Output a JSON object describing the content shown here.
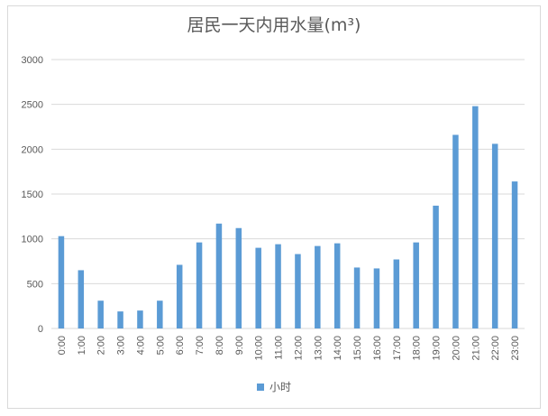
{
  "chart_data": {
    "type": "bar",
    "title": "居民一天内用水量(m³)",
    "categories": [
      "0:00",
      "1:00",
      "2:00",
      "3:00",
      "4:00",
      "5:00",
      "6:00",
      "7:00",
      "8:00",
      "9:00",
      "10:00",
      "11:00",
      "12:00",
      "13:00",
      "14:00",
      "15:00",
      "16:00",
      "17:00",
      "18:00",
      "19:00",
      "20:00",
      "21:00",
      "22:00",
      "23:00"
    ],
    "series": [
      {
        "name": "小时",
        "values": [
          1030,
          650,
          310,
          190,
          200,
          310,
          710,
          960,
          1170,
          1120,
          900,
          940,
          830,
          920,
          950,
          680,
          670,
          770,
          960,
          1370,
          2160,
          2480,
          2060,
          1640
        ]
      }
    ],
    "xlabel": "",
    "ylabel": "",
    "ylim": [
      0,
      3000
    ],
    "yticks": [
      "0",
      "500",
      "1000",
      "1500",
      "2000",
      "2500",
      "3000"
    ],
    "grid": true,
    "legend_position": "bottom",
    "colors": {
      "bar": "#5b9bd5",
      "grid": "#d9d9d9",
      "text": "#595959"
    }
  }
}
